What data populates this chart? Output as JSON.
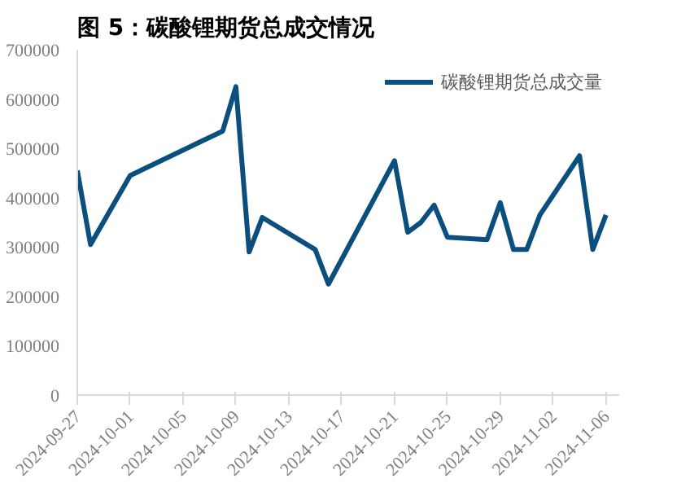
{
  "chart_data": {
    "type": "line",
    "title": "图 5：碳酸锂期货总成交情况",
    "x": [
      "2024-09-27",
      "2024-09-28",
      "2024-10-01",
      "2024-10-08",
      "2024-10-09",
      "2024-10-10",
      "2024-10-11",
      "2024-10-15",
      "2024-10-16",
      "2024-10-21",
      "2024-10-22",
      "2024-10-23",
      "2024-10-24",
      "2024-10-25",
      "2024-10-28",
      "2024-10-29",
      "2024-10-30",
      "2024-10-31",
      "2024-11-01",
      "2024-11-04",
      "2024-11-05",
      "2024-11-06"
    ],
    "series": [
      {
        "name": "碳酸锂期货总成交量",
        "color": "#0b4f7f",
        "values": [
          455000,
          305000,
          445000,
          535000,
          625000,
          290000,
          360000,
          295000,
          225000,
          475000,
          330000,
          350000,
          385000,
          320000,
          315000,
          390000,
          295000,
          295000,
          365000,
          485000,
          295000,
          365000
        ]
      }
    ],
    "xlim": [
      "2024-09-27",
      "2024-11-07"
    ],
    "xticks": [
      "2024-09-27",
      "2024-10-01",
      "2024-10-05",
      "2024-10-09",
      "2024-10-13",
      "2024-10-17",
      "2024-10-21",
      "2024-10-25",
      "2024-10-29",
      "2024-11-02",
      "2024-11-06"
    ],
    "ylim": [
      0,
      700000
    ],
    "yticks": [
      0,
      100000,
      200000,
      300000,
      400000,
      500000,
      600000,
      700000
    ],
    "grid": false,
    "legend": "top right",
    "marker": "none",
    "line_style": "solid"
  }
}
